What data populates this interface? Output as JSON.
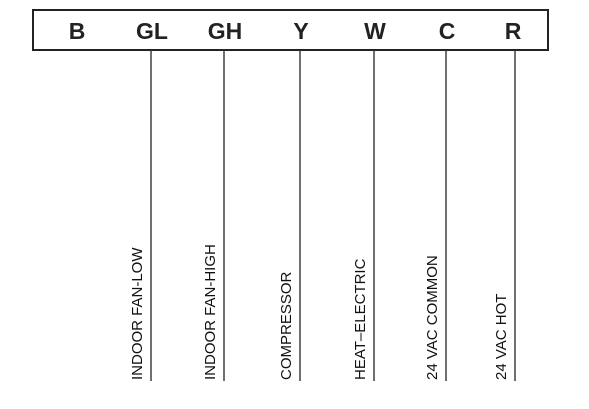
{
  "terminals": [
    {
      "code": "B",
      "function": ""
    },
    {
      "code": "GL",
      "function": "INDOOR FAN-LOW"
    },
    {
      "code": "GH",
      "function": "INDOOR FAN-HIGH"
    },
    {
      "code": "Y",
      "function": "COMPRESSOR"
    },
    {
      "code": "W",
      "function": "HEAT–ELECTRIC"
    },
    {
      "code": "C",
      "function": "24 VAC COMMON"
    },
    {
      "code": "R",
      "function": "24 VAC HOT"
    }
  ],
  "colors": {
    "line": "#333333",
    "text": "#111111",
    "background": "#ffffff"
  }
}
